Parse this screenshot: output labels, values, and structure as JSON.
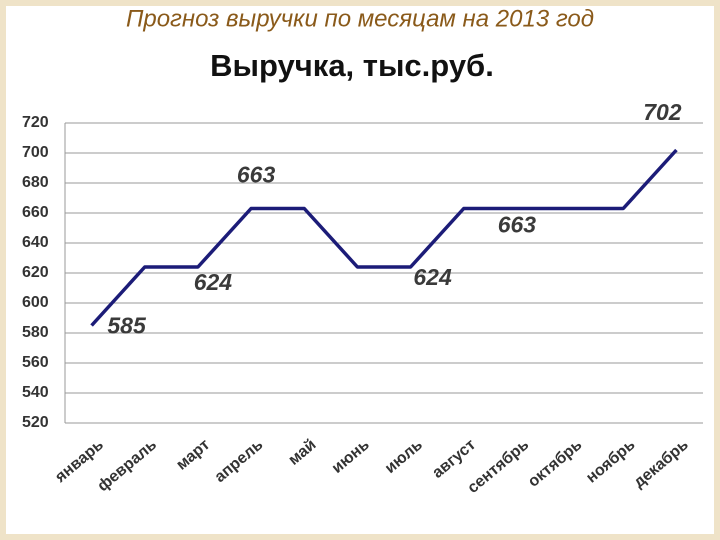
{
  "header": {
    "title": "Прогноз выручки по месяцам на 2013 год"
  },
  "chart_data": {
    "type": "line",
    "title": "Выручка, тыс.руб.",
    "categories": [
      "январь",
      "февраль",
      "март",
      "апрель",
      "май",
      "июнь",
      "июль",
      "август",
      "сентябрь",
      "октябрь",
      "ноябрь",
      "декабрь"
    ],
    "values": [
      585,
      624,
      624,
      663,
      663,
      624,
      624,
      663,
      663,
      663,
      663,
      702
    ],
    "value_labels": [
      "585",
      null,
      "624",
      "663",
      null,
      null,
      "624",
      null,
      "663",
      null,
      null,
      "702"
    ],
    "color": "#1c1c78",
    "ylim": [
      520,
      720
    ],
    "yticks": [
      520,
      540,
      560,
      580,
      600,
      620,
      640,
      660,
      680,
      700,
      720
    ],
    "grid": true
  }
}
